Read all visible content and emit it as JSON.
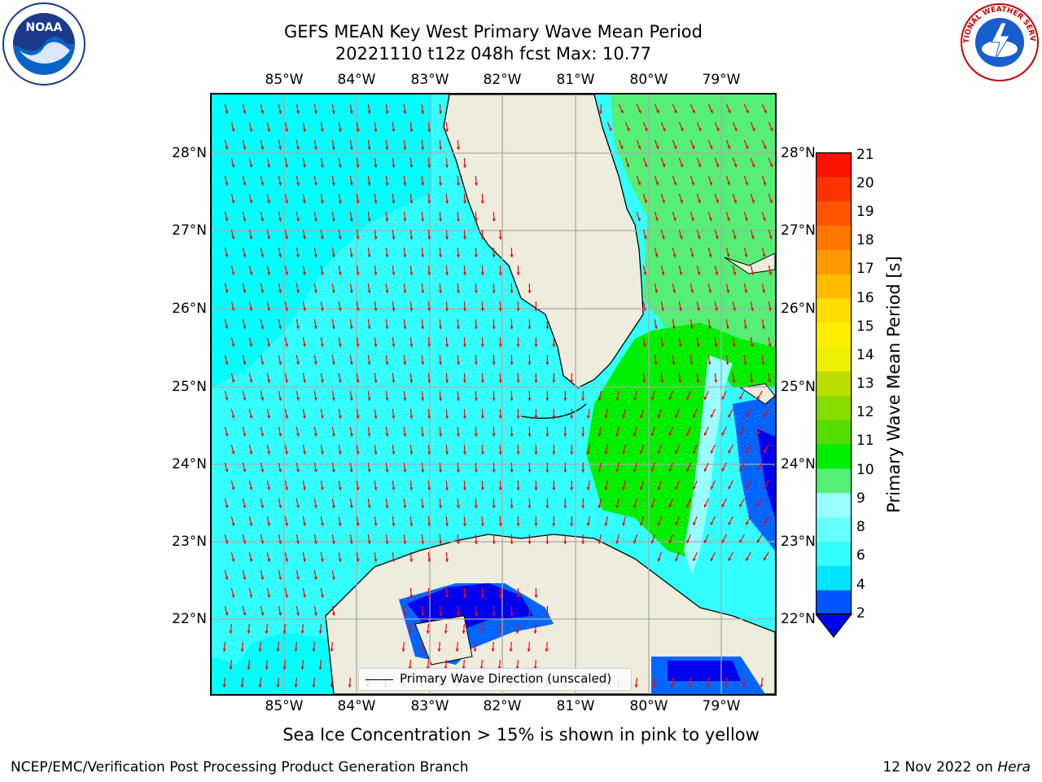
{
  "title_line1": "GEFS MEAN Key West Primary Wave Mean Period",
  "title_line2": "20221110 t12z 048h fcst   Max: 10.77",
  "lon_labels": [
    "85°W",
    "84°W",
    "83°W",
    "82°W",
    "81°W",
    "80°W",
    "79°W"
  ],
  "lat_labels": [
    "28°N",
    "27°N",
    "26°N",
    "25°N",
    "24°N",
    "23°N",
    "22°N"
  ],
  "map": {
    "lon_range": [
      -86.0,
      -78.3
    ],
    "lat_range": [
      21.1,
      28.8
    ],
    "projection": "mercator",
    "gridlines": true
  },
  "legend": {
    "label": "Primary Wave Direction (unscaled)",
    "placement": "lower-center"
  },
  "colorbar": {
    "label": "Primary Wave Mean Period [s]",
    "ticks": [
      "21",
      "20",
      "19",
      "18",
      "17",
      "16",
      "15",
      "14",
      "13",
      "12",
      "11",
      "10",
      "9",
      "8",
      "6",
      "4",
      "2"
    ],
    "colors": [
      "#0055ff",
      "#00e5ff",
      "#33ffff",
      "#66ffff",
      "#99ffff",
      "#55ee77",
      "#00ee00",
      "#55dd00",
      "#88dd00",
      "#bbdd00",
      "#eeee00",
      "#ffee00",
      "#ffdd00",
      "#ffbb00",
      "#ff9900",
      "#ff7700",
      "#ff5500",
      "#ff3300",
      "#ff1100"
    ],
    "underflow_color": "#0000ee"
  },
  "field_colors": {
    "gulf_cyan": "#00ffff",
    "gulf_light": "#33ffff",
    "atlantic_green": "#55ee77",
    "bright_green": "#00ee00",
    "blue": "#0066ff",
    "dark_blue": "#0000ee",
    "land": "#eeecdc",
    "arrow": "#ff0000"
  },
  "footnote": "Sea Ice Concentration > 15% is shown in pink to yellow",
  "footer_left": "NCEP/EMC/Verification Post Processing Product Generation Branch",
  "footer_right_date": "12 Nov 2022 on ",
  "footer_right_system": "Hera",
  "logos": {
    "noaa_text": "NOAA",
    "nws_text": "NATIONAL WEATHER SERVICE"
  }
}
